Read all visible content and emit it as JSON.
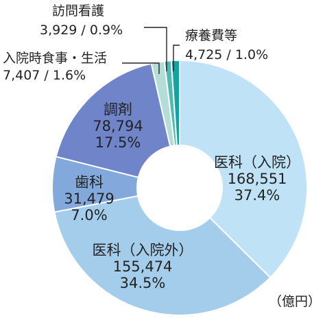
{
  "chart_data": {
    "type": "pie",
    "style": "donut",
    "unit_note": "（億円）",
    "slices": [
      {
        "name": "医科（入院）",
        "value": 168551,
        "percent": "37.4%",
        "value_text": "168,551",
        "color": "#bfe2f6"
      },
      {
        "name": "医科（入院外）",
        "value": 155474,
        "percent": "34.5%",
        "value_text": "155,474",
        "color": "#a4cdec"
      },
      {
        "name": "歯科",
        "value": 31479,
        "percent": "7.0%",
        "value_text": "31,479",
        "color": "#83a9dc"
      },
      {
        "name": "調剤",
        "value": 78794,
        "percent": "17.5%",
        "value_text": "78,794",
        "color": "#7084c9"
      },
      {
        "name": "入院時食事・生活",
        "value": 7407,
        "percent": "1.6%",
        "value_text": "7,407 / 1.6%",
        "color": "#b4ddd8"
      },
      {
        "name": "訪問看護",
        "value": 3929,
        "percent": "0.9%",
        "value_text": "3,929 / 0.9%",
        "color": "#4fb9b2"
      },
      {
        "name": "療養費等",
        "value": 4725,
        "percent": "1.0%",
        "value_text": "4,725 / 1.0%",
        "color": "#13a3a1"
      }
    ]
  }
}
